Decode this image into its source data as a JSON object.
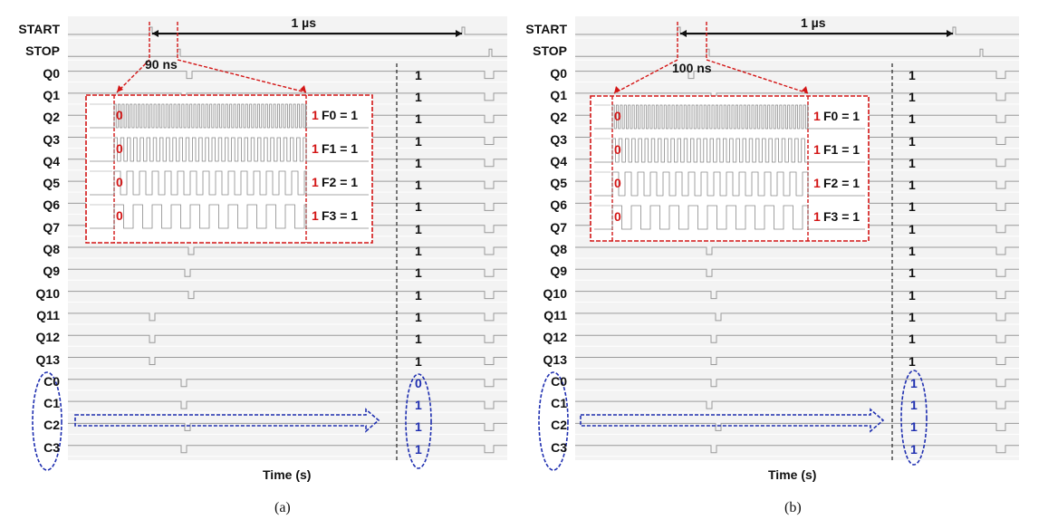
{
  "signal_labels": [
    "START",
    "STOP",
    "Q0",
    "Q1",
    "Q2",
    "Q3",
    "Q4",
    "Q5",
    "Q6",
    "Q7",
    "Q8",
    "Q9",
    "Q10",
    "Q11",
    "Q12",
    "Q13",
    "C0",
    "C1",
    "C2",
    "C3"
  ],
  "flags": [
    "F0 = 1",
    "F1 = 1",
    "F2 = 1",
    "F3 = 1"
  ],
  "x_axis_label": "Time (s)",
  "period_label": "1 µs",
  "inset_left_value": "0",
  "inset_right_value": "1",
  "panels": [
    {
      "caption": "(a)",
      "delay_label": "90 ns",
      "q_values": [
        "1",
        "1",
        "1",
        "1",
        "1",
        "1",
        "1",
        "1",
        "1",
        "1",
        "1",
        "1",
        "1",
        "1"
      ],
      "c_values": [
        "0",
        "1",
        "1",
        "1"
      ]
    },
    {
      "caption": "(b)",
      "delay_label": "100 ns",
      "q_values": [
        "1",
        "1",
        "1",
        "1",
        "1",
        "1",
        "1",
        "1",
        "1",
        "1",
        "1",
        "1",
        "1",
        "1"
      ],
      "c_values": [
        "1",
        "1",
        "1",
        "1"
      ]
    }
  ],
  "colors": {
    "annotation_red": "#d31515",
    "annotation_blue": "#1f2fb0",
    "trace": "#9a9a9a"
  }
}
